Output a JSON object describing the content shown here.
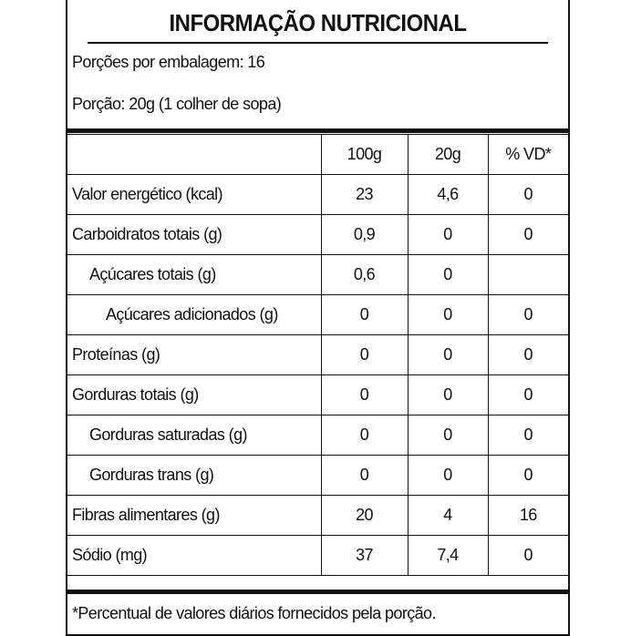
{
  "title": "INFORMAÇÃO NUTRICIONAL",
  "servings_per_package": "Porções por embalagem: 16",
  "serving_size": "Porção: 20g (1 colher de sopa)",
  "columns": [
    "",
    "100g",
    "20g",
    "% VD*"
  ],
  "rows": [
    {
      "name": "Valor energético (kcal)",
      "indent": 0,
      "v100": "23",
      "v20": "4,6",
      "vd": "0"
    },
    {
      "name": "Carboidratos totais (g)",
      "indent": 0,
      "v100": "0,9",
      "v20": "0",
      "vd": "0"
    },
    {
      "name": "Açúcares totais (g)",
      "indent": 1,
      "v100": "0,6",
      "v20": "0",
      "vd": ""
    },
    {
      "name": "Açúcares adicionados (g)",
      "indent": 2,
      "v100": "0",
      "v20": "0",
      "vd": "0"
    },
    {
      "name": "Proteínas (g)",
      "indent": 0,
      "v100": "0",
      "v20": "0",
      "vd": "0"
    },
    {
      "name": "Gorduras totais (g)",
      "indent": 0,
      "v100": "0",
      "v20": "0",
      "vd": "0"
    },
    {
      "name": "Gorduras saturadas (g)",
      "indent": 1,
      "v100": "0",
      "v20": "0",
      "vd": "0"
    },
    {
      "name": "Gorduras trans (g)",
      "indent": 1,
      "v100": "0",
      "v20": "0",
      "vd": "0"
    },
    {
      "name": "Fibras alimentares (g)",
      "indent": 0,
      "v100": "20",
      "v20": "4",
      "vd": "16"
    },
    {
      "name": "Sódio (mg)",
      "indent": 0,
      "v100": "37",
      "v20": "7,4",
      "vd": "0"
    }
  ],
  "footnote": "*Percentual de valores diários fornecidos pela porção."
}
